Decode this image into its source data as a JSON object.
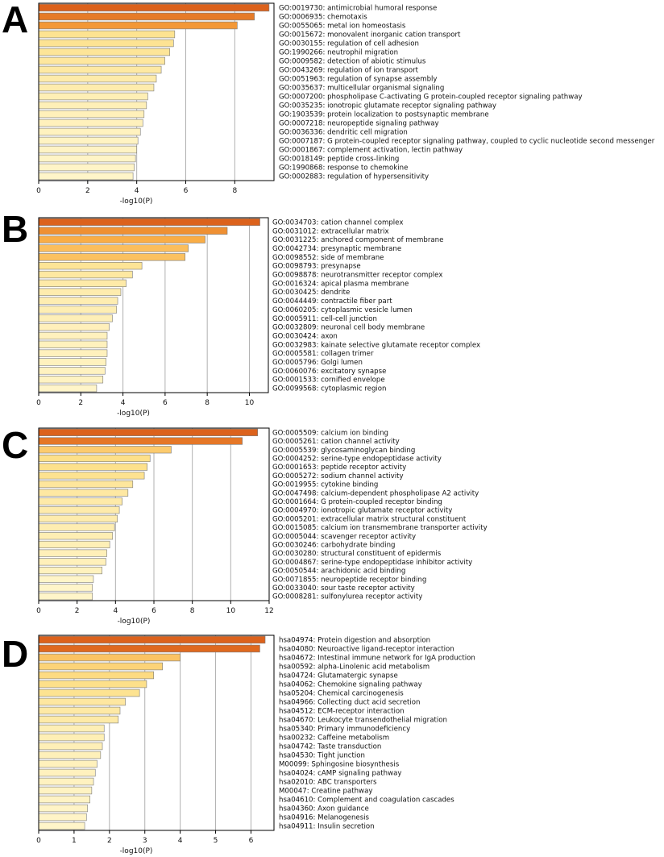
{
  "chart_data": [
    {
      "type": "bar",
      "panel": "A",
      "orientation": "horizontal",
      "xlabel": "-log10(P)",
      "xlim": [
        0,
        9.6
      ],
      "xticks": [
        0,
        2,
        4,
        6,
        8
      ],
      "grid": true,
      "categories": [
        "GO:0019730: antimicrobial humoral response",
        "GO:0006935: chemotaxis",
        "GO:0055065: metal ion homeostasis",
        "GO:0015672: monovalent inorganic cation transport",
        "GO:0030155: regulation of cell adhesion",
        "GO:1990266: neutrophil migration",
        "GO:0009582: detection of abiotic stimulus",
        "GO:0043269: regulation of ion transport",
        "GO:0051963: regulation of synapse assembly",
        "GO:0035637: multicellular organismal signaling",
        "GO:0007200: phospholipase C-activating G protein-coupled receptor signaling pathway",
        "GO:0035235: ionotropic glutamate receptor signaling pathway",
        "GO:1903539: protein localization to postsynaptic membrane",
        "GO:0007218: neuropeptide signaling pathway",
        "GO:0036336: dendritic cell migration",
        "GO:0007187: G protein-coupled receptor signaling pathway, coupled to cyclic nucleotide second messenger",
        "GO:0001867: complement activation, lectin pathway",
        "GO:0018149: peptide cross-linking",
        "GO:1990868: response to chemokine",
        "GO:0002883: regulation of hypersensitivity"
      ],
      "values": [
        9.4,
        8.8,
        8.1,
        5.55,
        5.5,
        5.35,
        5.15,
        5.0,
        4.8,
        4.7,
        4.45,
        4.4,
        4.3,
        4.25,
        4.15,
        4.05,
        4.0,
        3.95,
        3.9,
        3.85
      ]
    },
    {
      "type": "bar",
      "panel": "B",
      "orientation": "horizontal",
      "xlabel": "-log10(P)",
      "xlim": [
        0,
        10.9
      ],
      "xticks": [
        0,
        2,
        4,
        6,
        8,
        10
      ],
      "grid": true,
      "categories": [
        "GO:0034703: cation channel complex",
        "GO:0031012: extracellular matrix",
        "GO:0031225: anchored component of membrane",
        "GO:0042734: presynaptic membrane",
        "GO:0098552: side of membrane",
        "GO:0098793: presynapse",
        "GO:0098878: neurotransmitter receptor complex",
        "GO:0016324: apical plasma membrane",
        "GO:0030425: dendrite",
        "GO:0044449: contractile fiber part",
        "GO:0060205: cytoplasmic vesicle lumen",
        "GO:0005911: cell-cell junction",
        "GO:0032809: neuronal cell body membrane",
        "GO:0030424: axon",
        "GO:0032983: kainate selective glutamate receptor complex",
        "GO:0005581: collagen trimer",
        "GO:0005796: Golgi lumen",
        "GO:0060076: excitatory synapse",
        "GO:0001533: cornified envelope",
        "GO:0099568: cytoplasmic region"
      ],
      "values": [
        10.5,
        8.95,
        7.9,
        7.1,
        6.95,
        4.9,
        4.45,
        4.15,
        3.9,
        3.75,
        3.7,
        3.5,
        3.35,
        3.25,
        3.25,
        3.25,
        3.2,
        3.15,
        3.05,
        2.75
      ]
    },
    {
      "type": "bar",
      "panel": "C",
      "orientation": "horizontal",
      "xlabel": "-log10(P)",
      "xlim": [
        0,
        12.0
      ],
      "xticks": [
        0,
        2,
        4,
        6,
        8,
        10,
        12
      ],
      "grid": true,
      "categories": [
        "GO:0005509: calcium ion binding",
        "GO:0005261: cation channel activity",
        "GO:0005539: glycosaminoglycan binding",
        "GO:0004252: serine-type endopeptidase activity",
        "GO:0001653: peptide receptor activity",
        "GO:0005272: sodium channel activity",
        "GO:0019955: cytokine binding",
        "GO:0047498: calcium-dependent phospholipase A2 activity",
        "GO:0001664: G protein-coupled receptor binding",
        "GO:0004970: ionotropic glutamate receptor activity",
        "GO:0005201: extracellular matrix structural constituent",
        "GO:0015085: calcium ion transmembrane transporter activity",
        "GO:0005044: scavenger receptor activity",
        "GO:0030246: carbohydrate binding",
        "GO:0030280: structural constituent of epidermis",
        "GO:0004867: serine-type endopeptidase inhibitor activity",
        "GO:0050544: arachidonic acid binding",
        "GO:0071855: neuropeptide receptor binding",
        "GO:0033040: sour taste receptor activity",
        "GO:0008281: sulfonylurea receptor activity"
      ],
      "values": [
        11.4,
        10.6,
        6.9,
        5.8,
        5.65,
        5.5,
        4.9,
        4.65,
        4.35,
        4.2,
        4.1,
        3.95,
        3.85,
        3.7,
        3.55,
        3.5,
        3.3,
        2.85,
        2.8,
        2.8
      ]
    },
    {
      "type": "bar",
      "panel": "D",
      "orientation": "horizontal",
      "xlabel": "-log10(P)",
      "xlim": [
        0,
        6.65
      ],
      "xticks": [
        0,
        1,
        2,
        3,
        4,
        5,
        6
      ],
      "grid": true,
      "categories": [
        "hsa04974: Protein digestion and absorption",
        "hsa04080: Neuroactive ligand-receptor interaction",
        "hsa04672: Intestinal immune network for IgA production",
        "hsa00592: alpha-Linolenic acid metabolism",
        "hsa04724: Glutamatergic synapse",
        "hsa04062: Chemokine signaling pathway",
        "hsa05204: Chemical carcinogenesis",
        "hsa04966: Collecting duct acid secretion",
        "hsa04512: ECM-receptor interaction",
        "hsa04670: Leukocyte transendothelial migration",
        "hsa05340: Primary immunodeficiency",
        "hsa00232: Caffeine metabolism",
        "hsa04742: Taste transduction",
        "hsa04530: Tight junction",
        "M00099: Sphingosine biosynthesis",
        "hsa04024: cAMP signaling pathway",
        "hsa02010: ABC transporters",
        "M00047: Creatine pathway",
        "hsa04610: Complement and coagulation cascades",
        "hsa04360: Axon guidance",
        "hsa04916: Melanogenesis",
        "hsa04911: Insulin secretion"
      ],
      "values": [
        6.4,
        6.25,
        4.0,
        3.5,
        3.25,
        3.05,
        2.85,
        2.45,
        2.3,
        2.25,
        1.85,
        1.85,
        1.8,
        1.75,
        1.65,
        1.6,
        1.55,
        1.5,
        1.45,
        1.38,
        1.35,
        1.3
      ]
    }
  ]
}
